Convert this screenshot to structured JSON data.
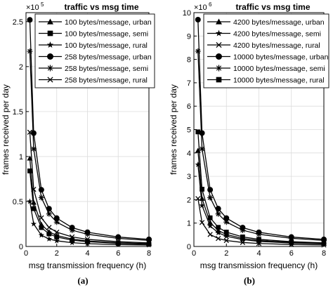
{
  "chart_data": [
    {
      "type": "line",
      "panel_label": "(a)",
      "title": "traffic vs msg time",
      "xlabel": "msg transmission frequency (h)",
      "ylabel": "frames received per day",
      "exponent_label": "×10",
      "exponent_power": "5",
      "xlim": [
        0,
        8
      ],
      "ylim": [
        0,
        2.6
      ],
      "x_ticks": [
        0,
        2,
        4,
        6,
        8
      ],
      "x_tick_labels": [
        "0",
        "2",
        "4",
        "6",
        "8"
      ],
      "y_ticks": [
        0,
        0.5,
        1,
        1.5,
        2,
        2.5
      ],
      "y_tick_labels": [
        "0",
        "0.5",
        "1",
        "1.5",
        "2",
        "2.5"
      ],
      "grid": true,
      "legend_position": "top-right",
      "x": [
        0.25,
        0.5,
        1,
        1.5,
        2,
        3,
        4,
        6,
        8
      ],
      "series": [
        {
          "name": "100 bytes/message, urban",
          "marker": "triangle",
          "values": [
            0.98,
            0.49,
            0.245,
            0.163,
            0.122,
            0.082,
            0.061,
            0.041,
            0.031
          ]
        },
        {
          "name": "100 bytes/message, semi",
          "marker": "square",
          "values": [
            0.84,
            0.42,
            0.21,
            0.14,
            0.105,
            0.07,
            0.053,
            0.035,
            0.026
          ]
        },
        {
          "name": "100 bytes/message, rural",
          "marker": "star",
          "values": [
            0.5,
            0.25,
            0.125,
            0.083,
            0.063,
            0.042,
            0.031,
            0.021,
            0.016
          ]
        },
        {
          "name": "258 bytes/message, urban",
          "marker": "circle",
          "values": [
            2.52,
            1.26,
            0.63,
            0.42,
            0.315,
            0.21,
            0.158,
            0.105,
            0.079
          ]
        },
        {
          "name": "258 bytes/message, semi",
          "marker": "asterisk",
          "values": [
            2.17,
            1.085,
            0.543,
            0.362,
            0.271,
            0.181,
            0.136,
            0.09,
            0.068
          ]
        },
        {
          "name": "258 bytes/message, rural",
          "marker": "x",
          "values": [
            1.27,
            0.635,
            0.318,
            0.212,
            0.159,
            0.106,
            0.079,
            0.053,
            0.04
          ]
        }
      ]
    },
    {
      "type": "line",
      "panel_label": "(b)",
      "title": "traffic vs msg time",
      "xlabel": "msg transmission frequency (h)",
      "ylabel": "frames received per day",
      "exponent_label": "×10",
      "exponent_power": "6",
      "xlim": [
        0,
        8
      ],
      "ylim": [
        0,
        10
      ],
      "x_ticks": [
        0,
        2,
        4,
        6,
        8
      ],
      "x_tick_labels": [
        "0",
        "2",
        "4",
        "6",
        "8"
      ],
      "y_ticks": [
        0,
        1,
        2,
        3,
        4,
        5,
        6,
        7,
        8,
        9,
        10
      ],
      "y_tick_labels": [
        "0",
        "1",
        "2",
        "3",
        "4",
        "5",
        "6",
        "7",
        "8",
        "9",
        "10"
      ],
      "grid": true,
      "legend_position": "top-right",
      "x": [
        0.25,
        0.5,
        1,
        1.5,
        2,
        3,
        4,
        6,
        8
      ],
      "series": [
        {
          "name": "4200 bytes/message, urban",
          "marker": "triangle",
          "values": [
            4.1,
            2.05,
            1.025,
            0.683,
            0.513,
            0.342,
            0.256,
            0.171,
            0.128
          ]
        },
        {
          "name": "4200 bytes/message, semi",
          "marker": "star",
          "values": [
            3.5,
            1.75,
            0.875,
            0.583,
            0.438,
            0.292,
            0.219,
            0.146,
            0.109
          ]
        },
        {
          "name": "4200 bytes/message, rural",
          "marker": "x",
          "values": [
            2.05,
            1.025,
            0.513,
            0.342,
            0.256,
            0.171,
            0.128,
            0.085,
            0.064
          ]
        },
        {
          "name": "10000 bytes/message, urban",
          "marker": "circle",
          "values": [
            9.7,
            4.85,
            2.425,
            1.617,
            1.213,
            0.808,
            0.606,
            0.404,
            0.303
          ]
        },
        {
          "name": "10000 bytes/message, semi",
          "marker": "asterisk",
          "values": [
            8.35,
            4.175,
            2.088,
            1.392,
            1.044,
            0.696,
            0.522,
            0.348,
            0.261
          ]
        },
        {
          "name": "10000 bytes/message, rural",
          "marker": "square",
          "values": [
            4.9,
            2.45,
            1.225,
            0.817,
            0.613,
            0.408,
            0.306,
            0.204,
            0.153
          ]
        }
      ]
    }
  ]
}
